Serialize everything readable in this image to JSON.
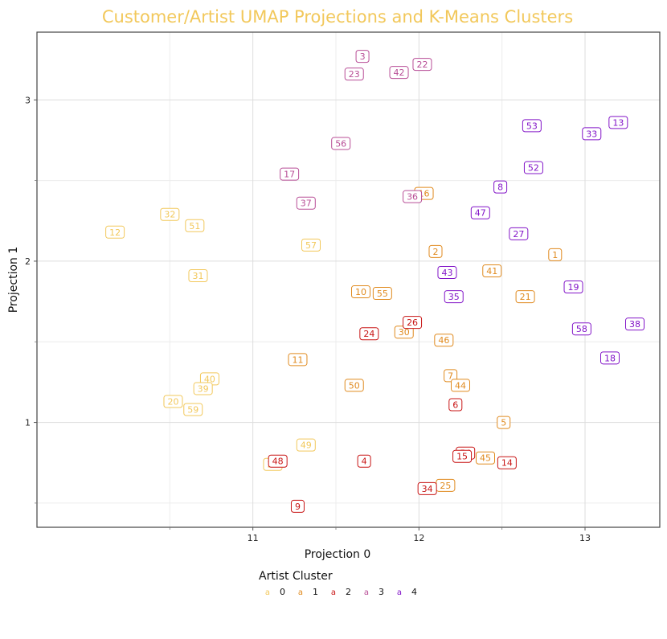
{
  "chart_data": {
    "type": "scatter",
    "title": "Customer/Artist UMAP Projections and K-Means Clusters",
    "title_color": "#F2C85B",
    "xlabel": "Projection 0",
    "ylabel": "Projection 1",
    "xlim": [
      9.7,
      13.45
    ],
    "ylim": [
      0.35,
      3.42
    ],
    "xticks": [
      11,
      12,
      13
    ],
    "yticks": [
      1,
      2,
      3
    ],
    "grid": true,
    "legend": {
      "title": "Artist Cluster",
      "position": "bottom",
      "key_glyph": "a",
      "entries": [
        {
          "label": "0",
          "color": "#F2C85B"
        },
        {
          "label": "1",
          "color": "#E08A1E"
        },
        {
          "label": "2",
          "color": "#C81414"
        },
        {
          "label": "3",
          "color": "#B84D96"
        },
        {
          "label": "4",
          "color": "#8214C8"
        }
      ]
    },
    "series": [
      {
        "cluster": "0",
        "color": "#F2C85B",
        "points": [
          {
            "label": "12",
            "x": 10.17,
            "y": 2.18
          },
          {
            "label": "32",
            "x": 10.5,
            "y": 2.29
          },
          {
            "label": "51",
            "x": 10.65,
            "y": 2.22
          },
          {
            "label": "31",
            "x": 10.67,
            "y": 1.91
          },
          {
            "label": "57",
            "x": 11.35,
            "y": 2.1
          },
          {
            "label": "40",
            "x": 10.74,
            "y": 1.27
          },
          {
            "label": "39",
            "x": 10.7,
            "y": 1.21
          },
          {
            "label": "20",
            "x": 10.52,
            "y": 1.13
          },
          {
            "label": "59",
            "x": 10.64,
            "y": 1.08
          },
          {
            "label": "49",
            "x": 11.32,
            "y": 0.86
          },
          {
            "label": "28",
            "x": 11.12,
            "y": 0.74
          }
        ]
      },
      {
        "cluster": "1",
        "color": "#E08A1E",
        "points": [
          {
            "label": "16",
            "x": 12.03,
            "y": 2.42
          },
          {
            "label": "2",
            "x": 12.1,
            "y": 2.06
          },
          {
            "label": "41",
            "x": 12.44,
            "y": 1.94
          },
          {
            "label": "1",
            "x": 12.82,
            "y": 2.04
          },
          {
            "label": "10",
            "x": 11.65,
            "y": 1.81
          },
          {
            "label": "55",
            "x": 11.78,
            "y": 1.8
          },
          {
            "label": "21",
            "x": 12.64,
            "y": 1.78
          },
          {
            "label": "30",
            "x": 11.91,
            "y": 1.56
          },
          {
            "label": "46",
            "x": 12.15,
            "y": 1.51
          },
          {
            "label": "11",
            "x": 11.27,
            "y": 1.39
          },
          {
            "label": "7",
            "x": 12.19,
            "y": 1.29
          },
          {
            "label": "44",
            "x": 12.25,
            "y": 1.23
          },
          {
            "label": "50",
            "x": 11.61,
            "y": 1.23
          },
          {
            "label": "5",
            "x": 12.51,
            "y": 1.0
          },
          {
            "label": "45",
            "x": 12.4,
            "y": 0.78
          },
          {
            "label": "25",
            "x": 12.16,
            "y": 0.61
          }
        ]
      },
      {
        "cluster": "2",
        "color": "#C81414",
        "points": [
          {
            "label": "26",
            "x": 11.96,
            "y": 1.62
          },
          {
            "label": "24",
            "x": 11.7,
            "y": 1.55
          },
          {
            "label": "6",
            "x": 12.22,
            "y": 1.11
          },
          {
            "label": "54",
            "x": 12.28,
            "y": 0.81
          },
          {
            "label": "15",
            "x": 12.26,
            "y": 0.79
          },
          {
            "label": "48",
            "x": 11.15,
            "y": 0.76
          },
          {
            "label": "4",
            "x": 11.67,
            "y": 0.76
          },
          {
            "label": "14",
            "x": 12.53,
            "y": 0.75
          },
          {
            "label": "34",
            "x": 12.05,
            "y": 0.59
          },
          {
            "label": "9",
            "x": 11.27,
            "y": 0.48
          }
        ]
      },
      {
        "cluster": "3",
        "color": "#B84D96",
        "points": [
          {
            "label": "3",
            "x": 11.66,
            "y": 3.27
          },
          {
            "label": "23",
            "x": 11.61,
            "y": 3.16
          },
          {
            "label": "42",
            "x": 11.88,
            "y": 3.17
          },
          {
            "label": "22",
            "x": 12.02,
            "y": 3.22
          },
          {
            "label": "56",
            "x": 11.53,
            "y": 2.73
          },
          {
            "label": "17",
            "x": 11.22,
            "y": 2.54
          },
          {
            "label": "37",
            "x": 11.32,
            "y": 2.36
          },
          {
            "label": "36",
            "x": 11.96,
            "y": 2.4
          }
        ]
      },
      {
        "cluster": "4",
        "color": "#8214C8",
        "points": [
          {
            "label": "53",
            "x": 12.68,
            "y": 2.84
          },
          {
            "label": "33",
            "x": 13.04,
            "y": 2.79
          },
          {
            "label": "13",
            "x": 13.2,
            "y": 2.86
          },
          {
            "label": "52",
            "x": 12.69,
            "y": 2.58
          },
          {
            "label": "8",
            "x": 12.49,
            "y": 2.46
          },
          {
            "label": "47",
            "x": 12.37,
            "y": 2.3
          },
          {
            "label": "27",
            "x": 12.6,
            "y": 2.17
          },
          {
            "label": "43",
            "x": 12.17,
            "y": 1.93
          },
          {
            "label": "35",
            "x": 12.21,
            "y": 1.78
          },
          {
            "label": "19",
            "x": 12.93,
            "y": 1.84
          },
          {
            "label": "38",
            "x": 13.3,
            "y": 1.61
          },
          {
            "label": "58",
            "x": 12.98,
            "y": 1.58
          },
          {
            "label": "18",
            "x": 13.15,
            "y": 1.4
          }
        ]
      }
    ]
  }
}
